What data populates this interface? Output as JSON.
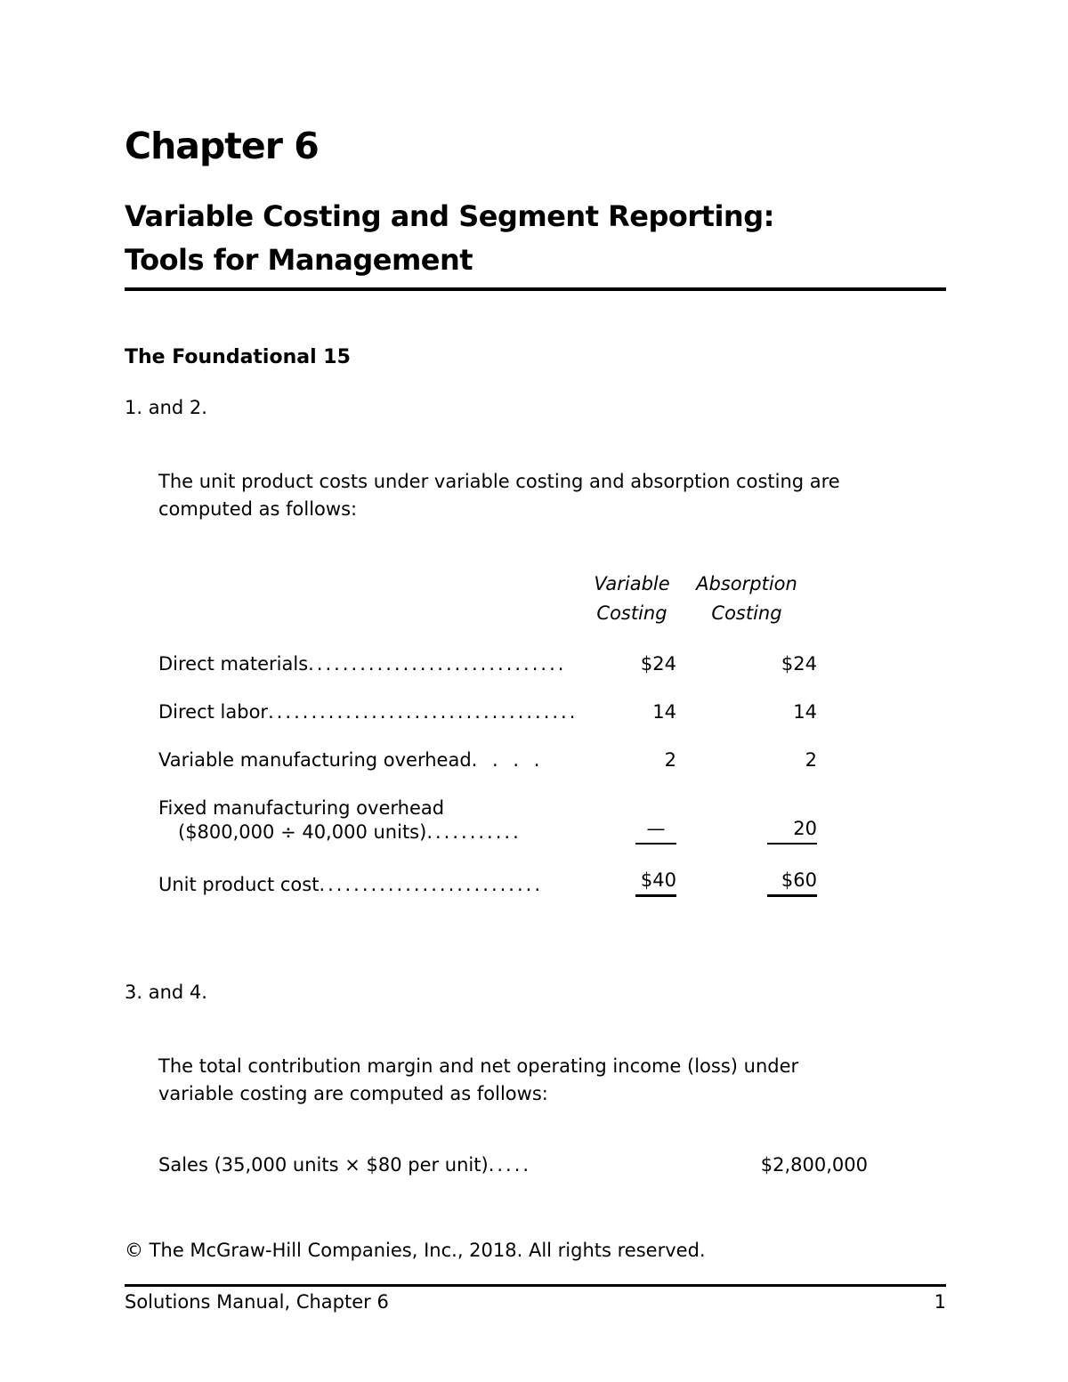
{
  "page": {
    "chapter_heading": "Chapter 6",
    "title_line1": "Variable Costing and Segment Reporting:",
    "title_line2": "Tools for Management",
    "section_heading": "The Foundational 15",
    "item_1": "1. and 2.",
    "paragraph_1_line1": "The unit product costs under variable costing and absorption costing are",
    "paragraph_1_line2": "computed as follows:",
    "item_2": "3. and 4.",
    "paragraph_2_line1": "The total contribution margin and net operating income (loss) under",
    "paragraph_2_line2": "variable costing are computed as follows:"
  },
  "cost_table": {
    "col1_header_line1": "Variable",
    "col1_header_line2": "Costing",
    "col2_header_line1": "Absorption",
    "col2_header_line2": "Costing",
    "rows": [
      {
        "text": "Direct materials",
        "leader": "..............................",
        "variable": "$24",
        "absorption": "$24"
      },
      {
        "text": "Direct labor",
        "leader": "....................................",
        "variable": "14",
        "absorption": "14"
      },
      {
        "text": "Variable manufacturing overhead",
        "leader": ". . . .",
        "variable": "2",
        "absorption": "2"
      },
      {
        "text": "Fixed manufacturing overhead",
        "text2": "($800,000 ÷ 40,000 units)",
        "leader": "...........",
        "variable": "—",
        "absorption": "20"
      },
      {
        "text": "Unit product cost",
        "leader": "..........................",
        "variable": "$40",
        "absorption": "$60"
      }
    ]
  },
  "sales_line": {
    "text": "Sales (35,000 units × $80 per unit)",
    "leader": ".....",
    "value": "$2,800,000"
  },
  "footer": {
    "copyright": "© The McGraw-Hill Companies, Inc., 2018. All rights reserved.",
    "manual_label": "Solutions Manual, Chapter 6",
    "page_number": "1"
  },
  "colors": {
    "text": "#000000",
    "background": "#ffffff"
  }
}
